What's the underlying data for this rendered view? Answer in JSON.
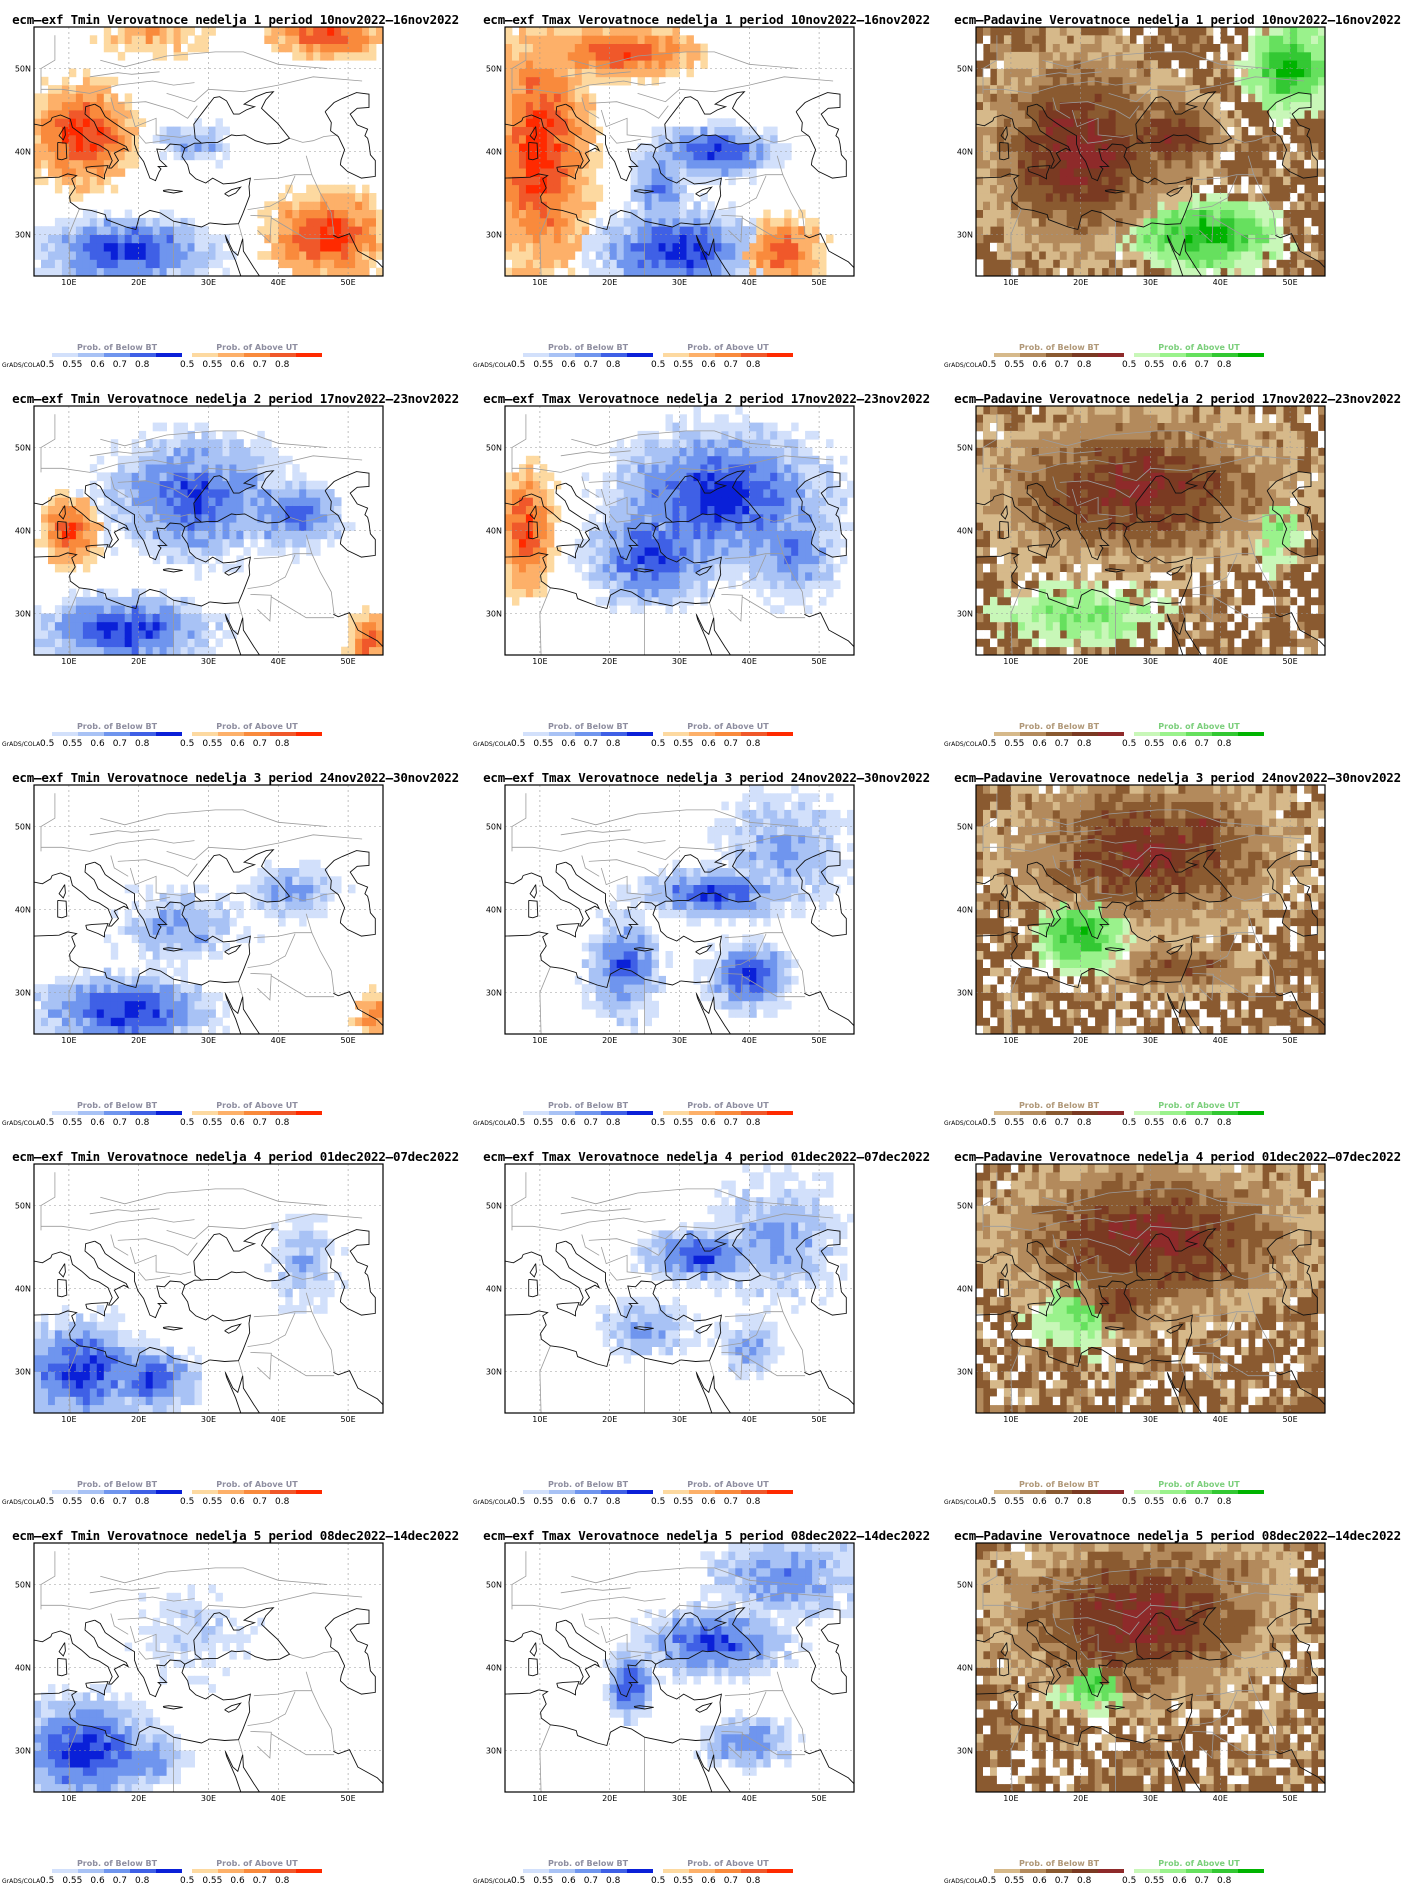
{
  "colors": {
    "warm": [
      "#fdd9a0",
      "#fdb069",
      "#f98a3c",
      "#f0582a",
      "#ff2a00"
    ],
    "cool": [
      "#d2e0fb",
      "#a8c2f5",
      "#6f95ee",
      "#3f60e6",
      "#0a20d8"
    ],
    "wet": [
      "#d6b98a",
      "#b38a5c",
      "#8a5a30",
      "#7a3a22",
      "#8e2a2a"
    ],
    "dry": [
      "#c8f7b8",
      "#9af28c",
      "#66e05e",
      "#33c833",
      "#00b400"
    ]
  },
  "panels": [
    {
      "title": "ecm–exf Tmin Verovatnoce nedelja 1 period 10nov2022–16nov2022",
      "var": "tmin",
      "week": 1,
      "icon": "temperature-map-icon",
      "legend": {
        "left_title": "Prob. of Below BT",
        "right_title": "Prob. of Above UT",
        "left_ramp": "cool",
        "right_ramp": "warm"
      }
    },
    {
      "title": "ecm–exf Tmax Verovatnoce nedelja 1 period 10nov2022–16nov2022",
      "var": "tmax",
      "week": 1,
      "icon": "temperature-map-icon",
      "legend": {
        "left_title": "Prob. of Below BT",
        "right_title": "Prob. of Above UT",
        "left_ramp": "cool",
        "right_ramp": "warm"
      }
    },
    {
      "title": "ecm–Padavine Verovatnoce nedelja 1 period 10nov2022–16nov2022",
      "var": "prec",
      "week": 1,
      "icon": "precipitation-map-icon",
      "legend": {
        "left_title": "Prob. of Below BT",
        "right_title": "Prob. of Above UT",
        "left_ramp": "wet",
        "right_ramp": "dry"
      }
    },
    {
      "title": "ecm–exf Tmin Verovatnoce nedelja 2 period 17nov2022–23nov2022",
      "var": "tmin",
      "week": 2,
      "icon": "temperature-map-icon",
      "legend": {
        "left_title": "Prob. of Below BT",
        "right_title": "Prob. of Above UT",
        "left_ramp": "cool",
        "right_ramp": "warm"
      }
    },
    {
      "title": "ecm–exf Tmax Verovatnoce nedelja 2 period 17nov2022–23nov2022",
      "var": "tmax",
      "week": 2,
      "icon": "temperature-map-icon",
      "legend": {
        "left_title": "Prob. of Below BT",
        "right_title": "Prob. of Above UT",
        "left_ramp": "cool",
        "right_ramp": "warm"
      }
    },
    {
      "title": "ecm–Padavine Verovatnoce nedelja 2 period 17nov2022–23nov2022",
      "var": "prec",
      "week": 2,
      "icon": "precipitation-map-icon",
      "legend": {
        "left_title": "Prob. of Below BT",
        "right_title": "Prob. of Above UT",
        "left_ramp": "wet",
        "right_ramp": "dry"
      }
    },
    {
      "title": "ecm–exf Tmin Verovatnoce nedelja 3 period 24nov2022–30nov2022",
      "var": "tmin",
      "week": 3,
      "icon": "temperature-map-icon",
      "legend": {
        "left_title": "Prob. of Below BT",
        "right_title": "Prob. of Above UT",
        "left_ramp": "cool",
        "right_ramp": "warm"
      }
    },
    {
      "title": "ecm–exf Tmax Verovatnoce nedelja 3 period 24nov2022–30nov2022",
      "var": "tmax",
      "week": 3,
      "icon": "temperature-map-icon",
      "legend": {
        "left_title": "Prob. of Below BT",
        "right_title": "Prob. of Above UT",
        "left_ramp": "cool",
        "right_ramp": "warm"
      }
    },
    {
      "title": "ecm–Padavine Verovatnoce nedelja 3 period 24nov2022–30nov2022",
      "var": "prec",
      "week": 3,
      "icon": "precipitation-map-icon",
      "legend": {
        "left_title": "Prob. of Below BT",
        "right_title": "Prob. of Above UT",
        "left_ramp": "wet",
        "right_ramp": "dry"
      }
    },
    {
      "title": "ecm–exf Tmin Verovatnoce nedelja 4 period 01dec2022–07dec2022",
      "var": "tmin",
      "week": 4,
      "icon": "temperature-map-icon",
      "legend": {
        "left_title": "Prob. of Below BT",
        "right_title": "Prob. of Above UT",
        "left_ramp": "cool",
        "right_ramp": "warm"
      }
    },
    {
      "title": "ecm–exf Tmax Verovatnoce nedelja 4 period 01dec2022–07dec2022",
      "var": "tmax",
      "week": 4,
      "icon": "temperature-map-icon",
      "legend": {
        "left_title": "Prob. of Below BT",
        "right_title": "Prob. of Above UT",
        "left_ramp": "cool",
        "right_ramp": "warm"
      }
    },
    {
      "title": "ecm–Padavine Verovatnoce nedelja 4 period 01dec2022–07dec2022",
      "var": "prec",
      "week": 4,
      "icon": "precipitation-map-icon",
      "legend": {
        "left_title": "Prob. of Below BT",
        "right_title": "Prob. of Above UT",
        "left_ramp": "wet",
        "right_ramp": "dry"
      }
    },
    {
      "title": "ecm–exf Tmin Verovatnoce nedelja 5 period 08dec2022–14dec2022",
      "var": "tmin",
      "week": 5,
      "icon": "temperature-map-icon",
      "legend": {
        "left_title": "Prob. of Below BT",
        "right_title": "Prob. of Above UT",
        "left_ramp": "cool",
        "right_ramp": "warm"
      }
    },
    {
      "title": "ecm–exf Tmax Verovatnoce nedelja 5 period 08dec2022–14dec2022",
      "var": "tmax",
      "week": 5,
      "icon": "temperature-map-icon",
      "legend": {
        "left_title": "Prob. of Below BT",
        "right_title": "Prob. of Above UT",
        "left_ramp": "cool",
        "right_ramp": "warm"
      }
    },
    {
      "title": "ecm–Padavine Verovatnoce nedelja 5 period 08dec2022–14dec2022",
      "var": "prec",
      "week": 5,
      "icon": "precipitation-map-icon",
      "legend": {
        "left_title": "Prob. of Below BT",
        "right_title": "Prob. of Above UT",
        "left_ramp": "wet",
        "right_ramp": "dry"
      }
    }
  ],
  "axes": {
    "lon_labels": [
      "10E",
      "20E",
      "30E",
      "40E",
      "50E"
    ],
    "lon_values": [
      10,
      20,
      30,
      40,
      50
    ],
    "lat_labels": [
      "30N",
      "40N",
      "50N"
    ],
    "lat_values": [
      30,
      40,
      50
    ],
    "lon_range": [
      5,
      55
    ],
    "lat_range": [
      25,
      55
    ]
  },
  "legend_ticks": [
    "0.5",
    "0.55",
    "0.6",
    "0.7",
    "0.8"
  ],
  "grads_label": "GrADS/COLA"
}
